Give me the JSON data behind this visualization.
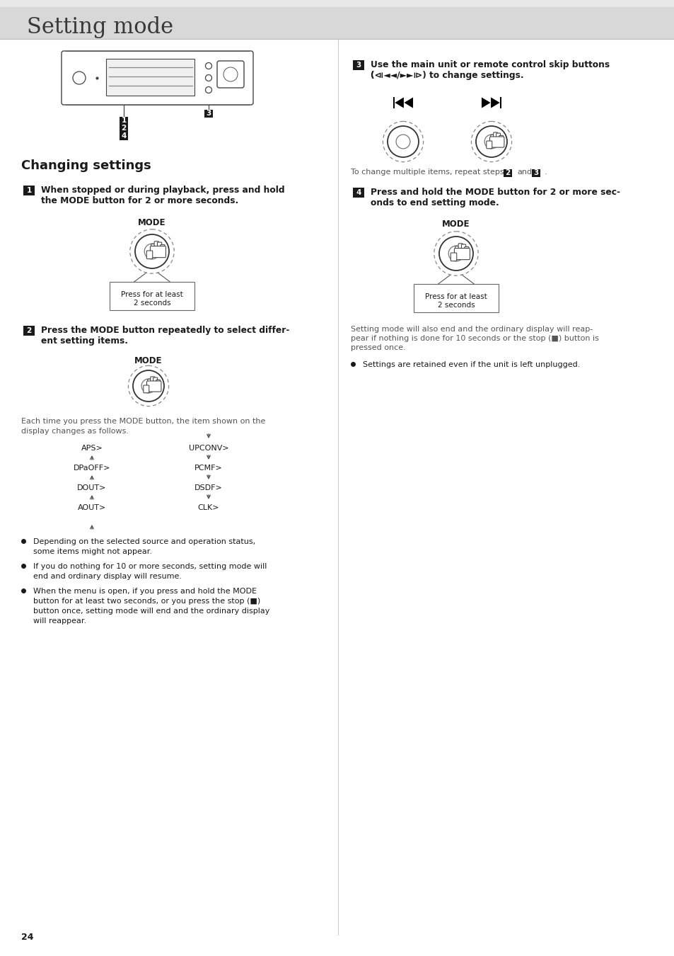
{
  "page_title": "Setting mode",
  "page_number": "24",
  "section_title": "Changing settings",
  "step1_line1": "When stopped or during playback, press and hold",
  "step1_line2": "the MODE button for 2 or more seconds.",
  "step2_line1": "Press the MODE button repeatedly to select differ-",
  "step2_line2": "ent setting items.",
  "step2_caption1": "Each time you press the MODE button, the item shown on the",
  "step2_caption2": "display changes as follows.",
  "flow_left": [
    "APS>",
    "DPaOFF>",
    "DOUT>",
    "AOUT>"
  ],
  "flow_right": [
    "UPCONV>",
    "PCMF>",
    "DSDF>",
    "CLK>"
  ],
  "bullet1a": "Depending on the selected source and operation status,",
  "bullet1b": "some items might not appear.",
  "bullet2a": "If you do nothing for 10 or more seconds, setting mode will",
  "bullet2b": "end and ordinary display will resume.",
  "bullet3a": "When the menu is open, if you press and hold the MODE",
  "bullet3b": "button for at least two seconds, or you press the stop (■)",
  "bullet3c": "button once, setting mode will end and the ordinary display",
  "bullet3d": "will reappear.",
  "step3_line1": "Use the main unit or remote control skip buttons",
  "step3_line2": "(⏮/⏭) to change settings.",
  "step3_repeat1": "To change multiple items, repeat steps",
  "step4_line1": "Press and hold the MODE button for 2 or more sec-",
  "step4_line2": "onds to end setting mode.",
  "note1a": "Setting mode will also end and the ordinary display will reap-",
  "note1b": "pear if nothing is done for 10 seconds or the stop (■) button is",
  "note1c": "pressed once.",
  "right_bullet": "Settings are retained even if the unit is left unplugged.",
  "header_bg_top": "#d0d0d0",
  "header_bg_bot": "#e8e8e8",
  "text_dark": "#1a1a1a",
  "text_gray": "#555555",
  "badge_bg": "#1a1a1a",
  "badge_fg": "#ffffff"
}
